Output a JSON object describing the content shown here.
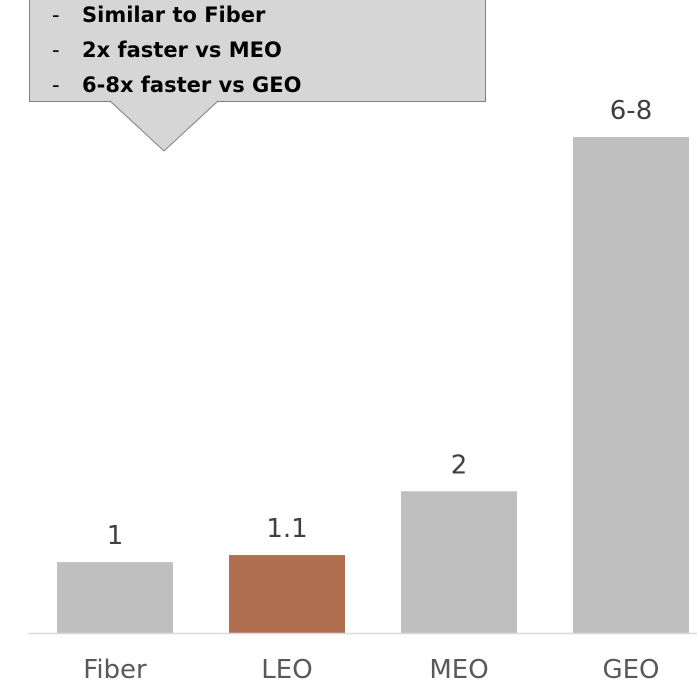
{
  "chart_data": {
    "type": "bar",
    "categories": [
      "Fiber",
      "LEO",
      "MEO",
      "GEO"
    ],
    "values": [
      1,
      1.1,
      2,
      7
    ],
    "value_labels": [
      "1",
      "1.1",
      "2",
      "6-8"
    ],
    "highlight_index": 1,
    "title": "",
    "xlabel": "",
    "ylabel": "",
    "ylim": [
      0,
      8.2
    ],
    "grid": false
  },
  "colors": {
    "bar": "#bfbfbf",
    "highlight": "#b07050",
    "axis": "#d9d9d9",
    "callout_fill": "#d6d6d6",
    "callout_border": "#7f7f7f"
  },
  "callout": {
    "items": [
      "Similar to Fiber",
      "2x faster vs MEO",
      "6-8x faster vs GEO"
    ],
    "bullet": "-"
  }
}
